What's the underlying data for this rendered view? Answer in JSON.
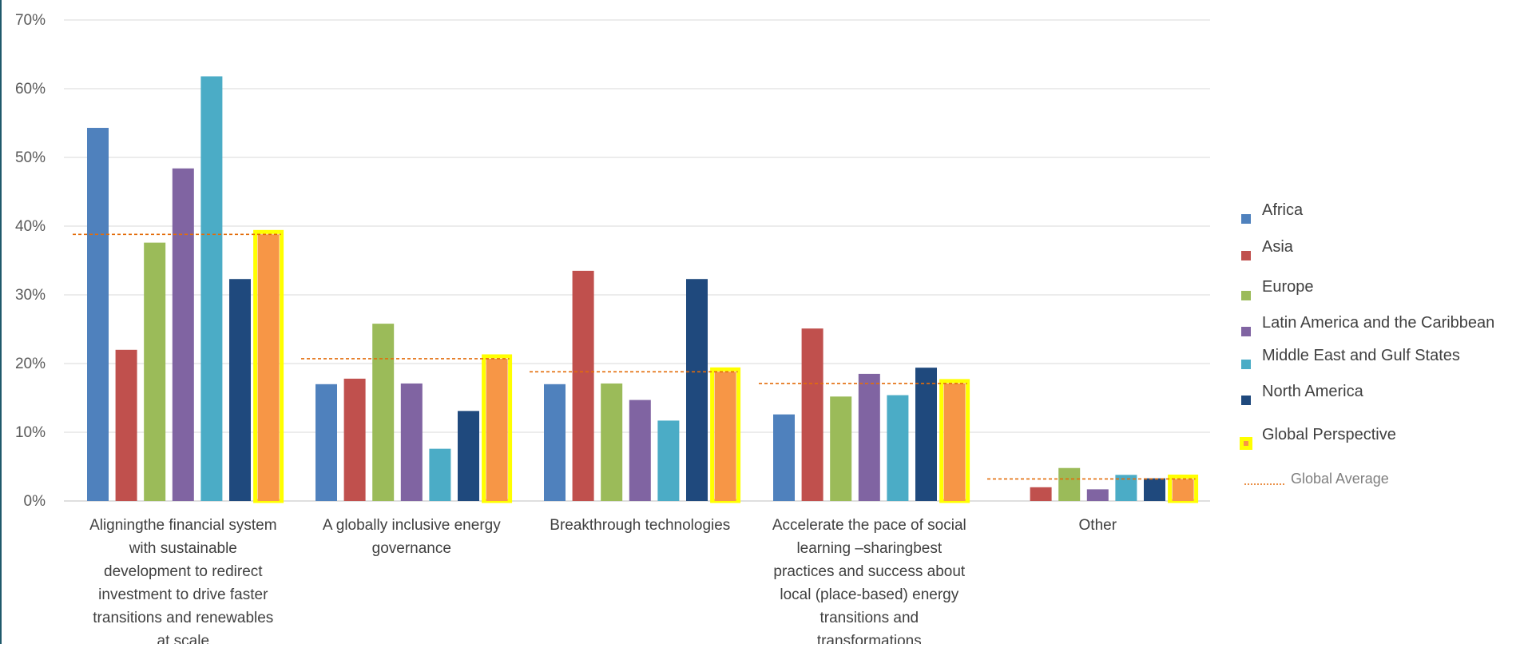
{
  "chart_data": {
    "type": "bar",
    "title": "",
    "xlabel": "",
    "ylabel": "",
    "ylim": [
      0,
      70
    ],
    "y_ticks": [
      "0%",
      "10%",
      "20%",
      "30%",
      "40%",
      "50%",
      "60%",
      "70%"
    ],
    "grid": true,
    "legend_position": "right",
    "categories": [
      [
        "Aligningthe  financial system",
        "with sustainable",
        "development  to redirect",
        "investment to drive faster",
        "transitions  and renewables",
        "at scale"
      ],
      [
        "A globally inclusive  energy",
        "governance"
      ],
      [
        "Breakthrough technologies"
      ],
      [
        "Accelerate the pace of social",
        "learning –sharingbest",
        "practices and success about",
        "local  (place-based) energy",
        "transitions and",
        "transformations"
      ],
      [
        "Other"
      ]
    ],
    "series": [
      {
        "name": "Africa",
        "color": "#4f81bd",
        "values": [
          54.3,
          17.0,
          17.0,
          12.6,
          0
        ]
      },
      {
        "name": "Asia",
        "color": "#c0504d",
        "values": [
          22.0,
          17.8,
          33.5,
          25.1,
          2.0
        ]
      },
      {
        "name": "Europe",
        "color": "#9bbb59",
        "values": [
          37.6,
          25.8,
          17.1,
          15.2,
          4.8
        ]
      },
      {
        "name": "Latin America and the Caribbean",
        "color": "#8064a2",
        "values": [
          48.4,
          17.1,
          14.7,
          18.5,
          1.7
        ]
      },
      {
        "name": "Middle East and Gulf States",
        "color": "#4bacc6",
        "values": [
          61.8,
          7.6,
          11.7,
          15.4,
          3.8
        ]
      },
      {
        "name": "North America",
        "color": "#1f497d",
        "values": [
          32.3,
          13.1,
          32.3,
          19.4,
          3.3
        ]
      },
      {
        "name": "Global Perspective",
        "color": "#f79646",
        "highlight": "#ffff00",
        "values": [
          38.8,
          20.7,
          18.8,
          17.1,
          3.2
        ]
      }
    ],
    "global_average": {
      "name": "Global Average",
      "color": "#e36c0a",
      "values": [
        38.8,
        20.7,
        18.8,
        17.1,
        3.2
      ]
    }
  }
}
